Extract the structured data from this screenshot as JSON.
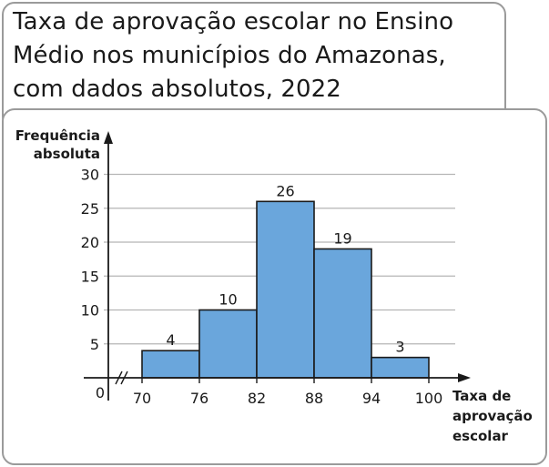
{
  "title_lines": [
    "Taxa de aprovação escolar no Ensino",
    "Médio nos municípios do Amazonas,",
    "com dados absolutos, 2022"
  ],
  "chart_data": {
    "type": "bar",
    "subtype": "histogram",
    "title": "Taxa de aprovação escolar no Ensino Médio nos municípios do Amazonas, com dados absolutos, 2022",
    "ylabel_lines": [
      "Frequência",
      "absoluta"
    ],
    "xlabel_lines": [
      "Taxa de",
      "aprovação",
      "escolar"
    ],
    "bins": [
      {
        "from": 70,
        "to": 76,
        "value": 4
      },
      {
        "from": 76,
        "to": 82,
        "value": 10
      },
      {
        "from": 82,
        "to": 88,
        "value": 26
      },
      {
        "from": 88,
        "to": 94,
        "value": 19
      },
      {
        "from": 94,
        "to": 100,
        "value": 3
      }
    ],
    "x_ticks": [
      70,
      76,
      82,
      88,
      94,
      100
    ],
    "y_ticks": [
      5,
      10,
      15,
      20,
      25,
      30
    ],
    "origin_label": "0",
    "ylim": [
      0,
      30
    ],
    "xlim": [
      70,
      100
    ],
    "grid": true,
    "x_axis_break": true,
    "bar_color": "#6aa6dc",
    "bar_stroke": "#1a1a1a",
    "grid_color": "#b5b5b5"
  }
}
